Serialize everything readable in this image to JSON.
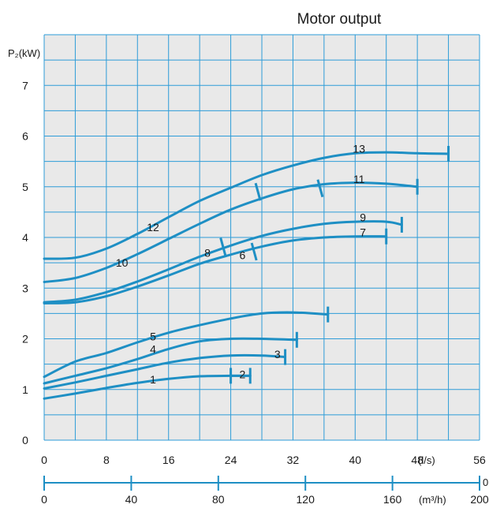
{
  "chart_data": {
    "type": "line",
    "title": "Motor output",
    "ylabel": "P₂(kW)",
    "xlabel": "(l/s)",
    "x2label": "(m³/h)",
    "xlim": [
      0,
      56
    ],
    "ylim": [
      0,
      8
    ],
    "x2lim": [
      0,
      200
    ],
    "x_ticks": [
      0,
      8,
      16,
      24,
      32,
      40,
      48,
      56
    ],
    "x_tick_labels": [
      "0",
      "8",
      "16",
      "24",
      "32",
      "40",
      "48",
      "56"
    ],
    "y_ticks": [
      0,
      1,
      2,
      3,
      4,
      5,
      6,
      7
    ],
    "y_tick_labels": [
      "0",
      "1",
      "2",
      "3",
      "4",
      "5",
      "6",
      "7"
    ],
    "x2_ticks": [
      0,
      40,
      80,
      120,
      160,
      200
    ],
    "x2_tick_labels": [
      "0",
      "40",
      "80",
      "120",
      "160",
      "200"
    ],
    "x2_axis_clipped_label": "0",
    "grid": true,
    "colors": {
      "curve": "#1e8fc4",
      "grid": "#2d9cd8",
      "background": "#e9e9e9",
      "axis": "#1e8fc4"
    },
    "series": [
      {
        "name": "1",
        "x": [
          0,
          4,
          8,
          12,
          16,
          20,
          24,
          26.5
        ],
        "y": [
          0.82,
          0.92,
          1.03,
          1.13,
          1.21,
          1.26,
          1.27,
          1.27
        ],
        "end_mark": 26.5,
        "label_pos": [
          14,
          1.2
        ]
      },
      {
        "name": "2",
        "x": [
          24,
          26.5
        ],
        "y": [
          1.27,
          1.27
        ],
        "end_mark": 24,
        "label_pos": [
          25.5,
          1.3
        ]
      },
      {
        "name": "3",
        "x": [
          0,
          4,
          8,
          12,
          16,
          20,
          24,
          28,
          31
        ],
        "y": [
          1.02,
          1.14,
          1.27,
          1.4,
          1.53,
          1.62,
          1.67,
          1.67,
          1.64
        ],
        "end_mark": 31,
        "label_pos": [
          30,
          1.7
        ]
      },
      {
        "name": "4",
        "x": [
          0,
          4,
          8,
          12,
          16,
          20,
          24,
          28,
          32.5
        ],
        "y": [
          1.12,
          1.27,
          1.42,
          1.6,
          1.8,
          1.95,
          2.0,
          2.0,
          1.98
        ],
        "end_mark": 32.5,
        "label_pos": [
          14,
          1.8
        ]
      },
      {
        "name": "5",
        "x": [
          0,
          4,
          8,
          12,
          16,
          20,
          24,
          28,
          32,
          36.5
        ],
        "y": [
          1.25,
          1.55,
          1.72,
          1.93,
          2.12,
          2.27,
          2.4,
          2.5,
          2.52,
          2.48
        ],
        "end_mark": 36.5,
        "label_pos": [
          14,
          2.05
        ]
      },
      {
        "name": "6",
        "x": [
          0,
          4,
          8,
          12,
          16,
          20,
          24,
          28,
          32,
          36,
          40,
          44
        ],
        "y": [
          2.7,
          2.72,
          2.84,
          3.03,
          3.25,
          3.48,
          3.66,
          3.82,
          3.94,
          4.0,
          4.02,
          4.02
        ],
        "end_mark": 44,
        "label_pos": [
          25.5,
          3.65
        ]
      },
      {
        "name": "7",
        "x": [
          44
        ],
        "y": [
          4.02
        ],
        "label_pos": [
          41,
          4.1
        ]
      },
      {
        "name": "8",
        "x": [
          0,
          4,
          8,
          12,
          16,
          20,
          24,
          28,
          32,
          36,
          40,
          44,
          46
        ],
        "y": [
          2.72,
          2.77,
          2.92,
          3.13,
          3.37,
          3.62,
          3.84,
          4.03,
          4.17,
          4.27,
          4.31,
          4.31,
          4.25
        ],
        "end_mark": 46,
        "label_pos": [
          21,
          3.7
        ]
      },
      {
        "name": "9",
        "x": [
          46
        ],
        "y": [
          4.25
        ],
        "label_pos": [
          41,
          4.4
        ]
      },
      {
        "name": "10",
        "x": [
          0,
          4,
          8,
          12,
          16,
          20,
          24,
          28,
          32,
          36,
          40,
          44,
          48
        ],
        "y": [
          3.12,
          3.2,
          3.4,
          3.67,
          3.97,
          4.27,
          4.55,
          4.77,
          4.95,
          5.05,
          5.08,
          5.06,
          5.0
        ],
        "end_mark": 48,
        "label_pos": [
          10,
          3.5
        ]
      },
      {
        "name": "11",
        "x": [
          48
        ],
        "y": [
          5.0
        ],
        "label_pos": [
          40.5,
          5.15
        ]
      },
      {
        "name": "12",
        "x": [
          0,
          4,
          8,
          12,
          16,
          20,
          24,
          28,
          32,
          36,
          40,
          44,
          48,
          52
        ],
        "y": [
          3.58,
          3.6,
          3.78,
          4.07,
          4.4,
          4.72,
          4.98,
          5.23,
          5.42,
          5.57,
          5.66,
          5.68,
          5.66,
          5.65
        ],
        "end_mark": 52,
        "label_pos": [
          14,
          4.2
        ]
      },
      {
        "name": "13",
        "x": [
          52
        ],
        "y": [
          5.65
        ],
        "label_pos": [
          40.5,
          5.75
        ]
      }
    ],
    "transition_marks": [
      {
        "x": 27.5,
        "y": 4.9,
        "between": [
          "12",
          "13"
        ]
      },
      {
        "x": 35.5,
        "y": 4.97,
        "between": [
          "10",
          "11"
        ]
      },
      {
        "x": 23,
        "y": 3.82,
        "between": [
          "8",
          "9"
        ]
      },
      {
        "x": 27,
        "y": 3.72,
        "between": [
          "6",
          "7"
        ]
      }
    ]
  }
}
